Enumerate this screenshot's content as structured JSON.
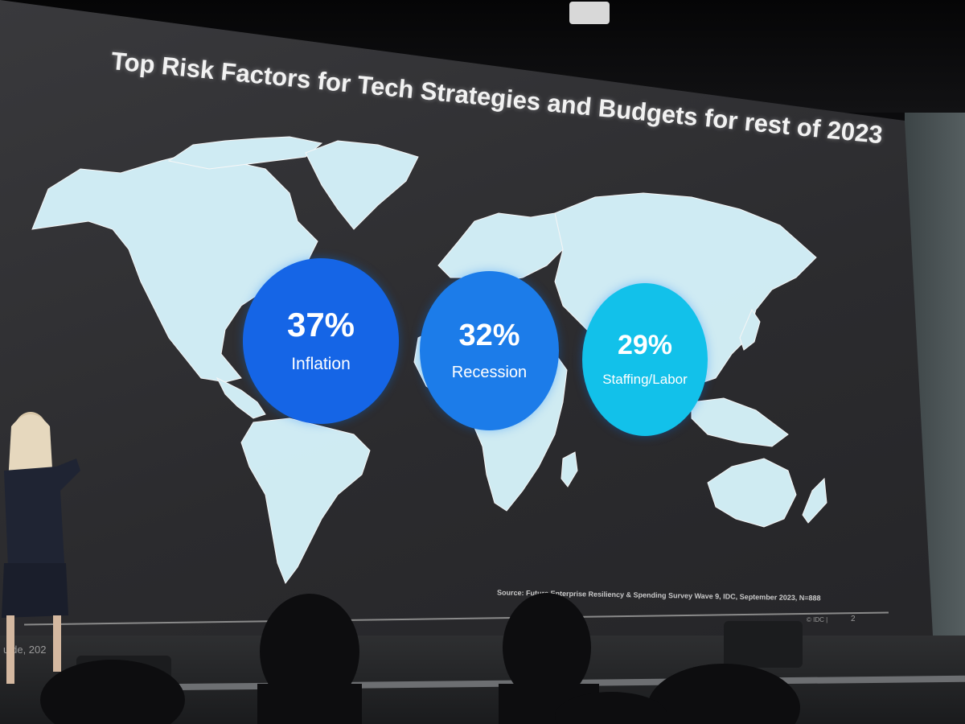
{
  "slide": {
    "title": "Top Risk Factors for Tech Strategies and Budgets for rest of 2023",
    "source": "Source: Future Enterprise Resiliency & Spending Survey Wave 9, IDC, September 2023, N=888",
    "copyright": "© IDC |",
    "page_number": "2",
    "footer_left": "uide, 202"
  },
  "stats": [
    {
      "value": "37%",
      "label": "Inflation",
      "color": "#1565e6"
    },
    {
      "value": "32%",
      "label": "Recession",
      "color": "#1c7ce9"
    },
    {
      "value": "29%",
      "label": "Staffing/Labor",
      "color": "#12c1ea"
    }
  ],
  "colors": {
    "map_land": "#d6f3fb",
    "screen_background": "#303033"
  }
}
